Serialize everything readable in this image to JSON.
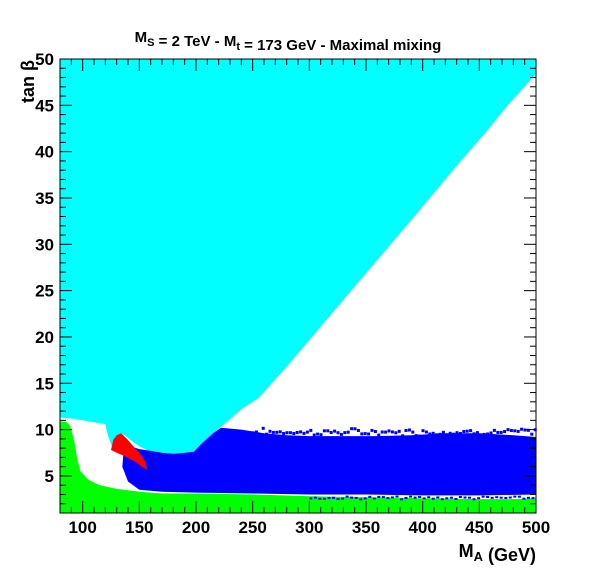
{
  "chart_data": {
    "type": "area",
    "title": {
      "parts": [
        {
          "t": "M",
          "s": "normal"
        },
        {
          "t": "S",
          "s": "sub"
        },
        {
          "t": " = 2 TeV  -  ",
          "s": "normal"
        },
        {
          "t": "M",
          "s": "normal"
        },
        {
          "t": "t",
          "s": "sub"
        },
        {
          "t": " = 173 GeV  -  Maximal mixing",
          "s": "normal"
        }
      ]
    },
    "xlabel": {
      "parts": [
        {
          "t": "M",
          "s": "normal"
        },
        {
          "t": "A",
          "s": "sub"
        },
        {
          "t": "  (GeV)",
          "s": "normal"
        }
      ]
    },
    "ylabel": "tan β",
    "xlim": [
      80,
      500
    ],
    "ylim": [
      1,
      50
    ],
    "xticks": [
      100,
      150,
      200,
      250,
      300,
      350,
      400,
      450,
      500
    ],
    "yticks": [
      5,
      10,
      15,
      20,
      25,
      30,
      35,
      40,
      45,
      50
    ],
    "grid": false,
    "colors": {
      "cyan": "#00ffff",
      "blue": "#0000ff",
      "green": "#00ff00",
      "red": "#ff0000",
      "frame": "#000000"
    },
    "regions": [
      {
        "key": "cyan",
        "color": "#00ffff",
        "polygon": [
          [
            80,
            50
          ],
          [
            500,
            50
          ],
          [
            500,
            48.4
          ],
          [
            475,
            45
          ],
          [
            455,
            42
          ],
          [
            430,
            38.5
          ],
          [
            405,
            34.8
          ],
          [
            380,
            31.2
          ],
          [
            355,
            27.6
          ],
          [
            330,
            24
          ],
          [
            305,
            20.4
          ],
          [
            280,
            16.8
          ],
          [
            255,
            13.4
          ],
          [
            240,
            12.2
          ],
          [
            228,
            10.9
          ],
          [
            215,
            9.6
          ],
          [
            205,
            8.5
          ],
          [
            198,
            7.6
          ],
          [
            190,
            7.5
          ],
          [
            180,
            7.4
          ],
          [
            170,
            7.5
          ],
          [
            160,
            7.6
          ],
          [
            150,
            8.2
          ],
          [
            143,
            8.8
          ],
          [
            138,
            9.3
          ],
          [
            134,
            9.6
          ],
          [
            130,
            8.5
          ],
          [
            126,
            8.1
          ],
          [
            122,
            9.5
          ],
          [
            120,
            10.6
          ],
          [
            110,
            10.8
          ],
          [
            100,
            11
          ],
          [
            90,
            11.2
          ],
          [
            80,
            11.3
          ]
        ]
      },
      {
        "key": "blue",
        "color": "#0000ff",
        "polygon": [
          [
            140,
            8.3
          ],
          [
            145,
            8.1
          ],
          [
            150,
            7.9
          ],
          [
            160,
            7.7
          ],
          [
            170,
            7.5
          ],
          [
            180,
            7.4
          ],
          [
            190,
            7.5
          ],
          [
            198,
            7.6
          ],
          [
            205,
            8.5
          ],
          [
            215,
            9.6
          ],
          [
            222,
            10.2
          ],
          [
            240,
            10
          ],
          [
            260,
            9.6
          ],
          [
            280,
            9.4
          ],
          [
            300,
            9.3
          ],
          [
            330,
            9.3
          ],
          [
            360,
            9.3
          ],
          [
            390,
            9.4
          ],
          [
            420,
            9.6
          ],
          [
            450,
            9.6
          ],
          [
            480,
            9.4
          ],
          [
            500,
            9.2
          ],
          [
            500,
            3
          ],
          [
            450,
            2.9
          ],
          [
            400,
            2.9
          ],
          [
            350,
            3
          ],
          [
            300,
            3
          ],
          [
            250,
            3.1
          ],
          [
            200,
            3.2
          ],
          [
            170,
            3.3
          ],
          [
            150,
            3.5
          ],
          [
            140,
            4.4
          ],
          [
            135,
            6
          ],
          [
            136,
            7.5
          ]
        ]
      },
      {
        "key": "red",
        "color": "#ff0000",
        "polygon": [
          [
            125,
            7.8
          ],
          [
            127,
            8.9
          ],
          [
            130,
            9.4
          ],
          [
            134,
            9.6
          ],
          [
            139,
            9.0
          ],
          [
            144,
            8.3
          ],
          [
            150,
            7.5
          ],
          [
            155,
            6.6
          ],
          [
            157,
            5.7
          ],
          [
            152,
            6.0
          ],
          [
            147,
            6.5
          ],
          [
            142,
            6.8
          ],
          [
            136,
            7.2
          ],
          [
            130,
            7.5
          ]
        ]
      },
      {
        "key": "green",
        "color": "#00ff00",
        "polygon": [
          [
            80,
            1
          ],
          [
            500,
            1
          ],
          [
            500,
            2.6
          ],
          [
            480,
            2.5
          ],
          [
            450,
            2.5
          ],
          [
            400,
            2.6
          ],
          [
            350,
            2.7
          ],
          [
            300,
            2.8
          ],
          [
            250,
            3.0
          ],
          [
            200,
            3.1
          ],
          [
            170,
            3.1
          ],
          [
            150,
            3.3
          ],
          [
            130,
            3.6
          ],
          [
            115,
            4.0
          ],
          [
            105,
            4.6
          ],
          [
            98,
            5.5
          ],
          [
            95,
            7
          ],
          [
            93,
            8.5
          ],
          [
            91,
            9.5
          ],
          [
            89,
            10.4
          ],
          [
            86,
            10.8
          ],
          [
            80,
            10.9
          ]
        ]
      }
    ]
  }
}
